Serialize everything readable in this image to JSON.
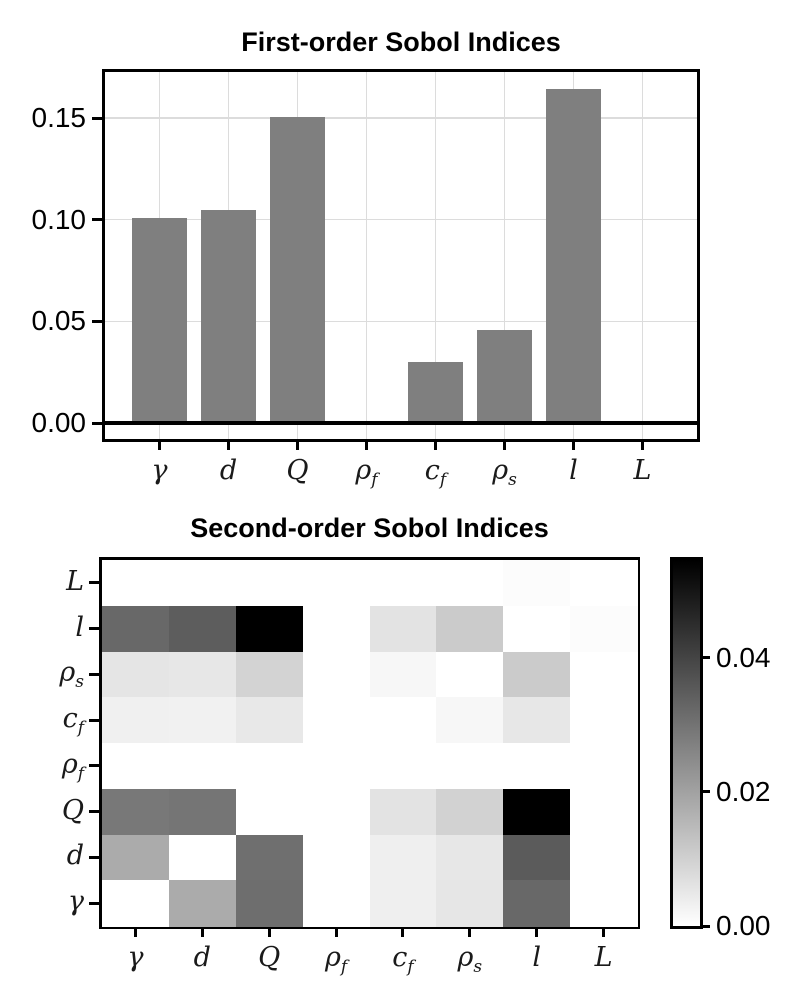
{
  "chart_data": [
    {
      "type": "bar",
      "title": "First-order Sobol Indices",
      "categories": [
        "γ",
        "d",
        "Q",
        "ρ_f",
        "c_f",
        "ρ_s",
        "l",
        "L"
      ],
      "values": [
        0.101,
        0.105,
        0.1505,
        0,
        0.0302,
        0.0457,
        0.1645,
        0
      ],
      "xlabel": "",
      "ylabel": "",
      "yticks": {
        "values": [
          0.0,
          0.05,
          0.1,
          0.15
        ],
        "labels": [
          "0.00",
          "0.05",
          "0.10",
          "0.15"
        ]
      },
      "ylim": [
        -0.008,
        0.1727
      ],
      "grid": true,
      "grid_color": "#dcdcdc",
      "bar_color": "#7f7f7f",
      "axis_color": "#000000",
      "zero_line": true
    },
    {
      "type": "heatmap",
      "title": "Second-order Sobol Indices",
      "x_categories": [
        "γ",
        "d",
        "Q",
        "ρ_f",
        "c_f",
        "ρ_s",
        "l",
        "L"
      ],
      "y_categories_top_to_bottom": [
        "L",
        "l",
        "ρ_s",
        "c_f",
        "ρ_f",
        "Q",
        "d",
        "γ"
      ],
      "matrix_rows_top_to_bottom": [
        [
          0,
          0,
          0,
          0,
          0,
          0,
          0.0006,
          0
        ],
        [
          0.0323,
          0.0347,
          0.0546,
          0,
          0.006,
          0.0112,
          0,
          0.0006
        ],
        [
          0.0056,
          0.0051,
          0.0094,
          0,
          0.0017,
          0,
          0.0112,
          0
        ],
        [
          0.0032,
          0.003,
          0.0049,
          0,
          0,
          0.0017,
          0.0051,
          0
        ],
        [
          0,
          0,
          0,
          0,
          0,
          0,
          0,
          0
        ],
        [
          0.0289,
          0.0296,
          0,
          0,
          0.006,
          0.0096,
          0.0546,
          0
        ],
        [
          0.018,
          0,
          0.0308,
          0,
          0.0034,
          0.0051,
          0.0351,
          0
        ],
        [
          0,
          0.018,
          0.031,
          0,
          0.0034,
          0.0053,
          0.0323,
          0
        ]
      ],
      "vmin": 0,
      "vmax": 0.0546,
      "colormap": "gray_r (0 = white, max = black)",
      "cell_min_color": "#ffffff",
      "cell_max_color": "#000000",
      "colorbar": {
        "position": "right",
        "ticks": {
          "values": [
            0.0,
            0.02,
            0.04
          ],
          "labels": [
            "0.00",
            "0.02",
            "0.04"
          ]
        }
      }
    }
  ]
}
